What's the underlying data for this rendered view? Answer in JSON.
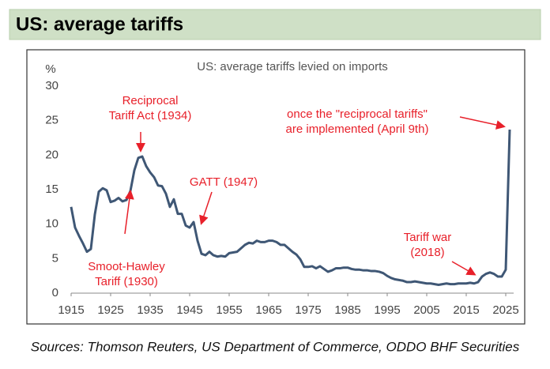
{
  "header": {
    "title": "US: average tariffs"
  },
  "chart_data": {
    "type": "line",
    "title": "US: average tariffs levied on imports",
    "y_label": "%",
    "x": [
      1915,
      1916,
      1917,
      1918,
      1919,
      1920,
      1921,
      1922,
      1923,
      1924,
      1925,
      1926,
      1927,
      1928,
      1929,
      1930,
      1931,
      1932,
      1933,
      1934,
      1935,
      1936,
      1937,
      1938,
      1939,
      1940,
      1941,
      1942,
      1943,
      1944,
      1945,
      1946,
      1947,
      1948,
      1949,
      1950,
      1951,
      1952,
      1953,
      1954,
      1955,
      1956,
      1957,
      1958,
      1959,
      1960,
      1961,
      1962,
      1963,
      1964,
      1965,
      1966,
      1967,
      1968,
      1969,
      1970,
      1971,
      1972,
      1973,
      1974,
      1975,
      1976,
      1977,
      1978,
      1979,
      1980,
      1981,
      1982,
      1983,
      1984,
      1985,
      1986,
      1987,
      1988,
      1989,
      1990,
      1991,
      1992,
      1993,
      1994,
      1995,
      1996,
      1997,
      1998,
      1999,
      2000,
      2001,
      2002,
      2003,
      2004,
      2005,
      2006,
      2007,
      2008,
      2009,
      2010,
      2011,
      2012,
      2013,
      2014,
      2015,
      2016,
      2017,
      2018,
      2019,
      2020,
      2021,
      2022,
      2023,
      2024,
      2025,
      2026
    ],
    "series": [
      {
        "name": "US average tariff",
        "color": "#3f5775",
        "values": [
          12.5,
          9.5,
          8.3,
          7.2,
          6.0,
          6.4,
          11.4,
          14.7,
          15.2,
          14.9,
          13.2,
          13.4,
          13.8,
          13.3,
          13.5,
          14.8,
          17.8,
          19.6,
          19.8,
          18.4,
          17.5,
          16.8,
          15.6,
          15.5,
          14.4,
          12.5,
          13.6,
          11.5,
          11.5,
          9.8,
          9.5,
          10.3,
          7.6,
          5.7,
          5.5,
          6.0,
          5.5,
          5.3,
          5.4,
          5.3,
          5.8,
          5.9,
          6.0,
          6.5,
          7.0,
          7.3,
          7.2,
          7.6,
          7.4,
          7.4,
          7.6,
          7.6,
          7.4,
          7.0,
          7.0,
          6.5,
          6.0,
          5.6,
          4.9,
          3.8,
          3.8,
          3.9,
          3.6,
          3.9,
          3.5,
          3.1,
          3.3,
          3.6,
          3.6,
          3.7,
          3.7,
          3.5,
          3.4,
          3.4,
          3.3,
          3.3,
          3.2,
          3.2,
          3.1,
          2.9,
          2.5,
          2.2,
          2.0,
          1.9,
          1.8,
          1.6,
          1.6,
          1.7,
          1.6,
          1.5,
          1.4,
          1.4,
          1.3,
          1.2,
          1.3,
          1.4,
          1.3,
          1.3,
          1.4,
          1.4,
          1.4,
          1.5,
          1.4,
          1.6,
          2.4,
          2.8,
          3.0,
          2.8,
          2.4,
          2.4,
          3.4,
          23.7
        ]
      }
    ],
    "xlim": [
      1915,
      2027
    ],
    "xticks": [
      1915,
      1925,
      1935,
      1945,
      1955,
      1965,
      1975,
      1985,
      1995,
      2005,
      2015,
      2025
    ],
    "ylim": [
      0,
      30
    ],
    "yticks": [
      0,
      5,
      10,
      15,
      20,
      25,
      30
    ],
    "annotation_color": "#e8202a",
    "annotations": [
      {
        "text": [
          "Reciprocal",
          "Tariff Act (1934)"
        ]
      },
      {
        "text": [
          "Smoot-Hawley",
          "Tariff (1930)"
        ]
      },
      {
        "text": [
          "GATT (1947)"
        ]
      },
      {
        "text": [
          "once the \"reciprocal tariffs\"",
          "are implemented (April 9th)"
        ]
      },
      {
        "text": [
          "Tariff war",
          "(2018)"
        ]
      }
    ]
  },
  "source": "Sources: Thomson Reuters, US Department of Commerce, ODDO BHF Securities"
}
